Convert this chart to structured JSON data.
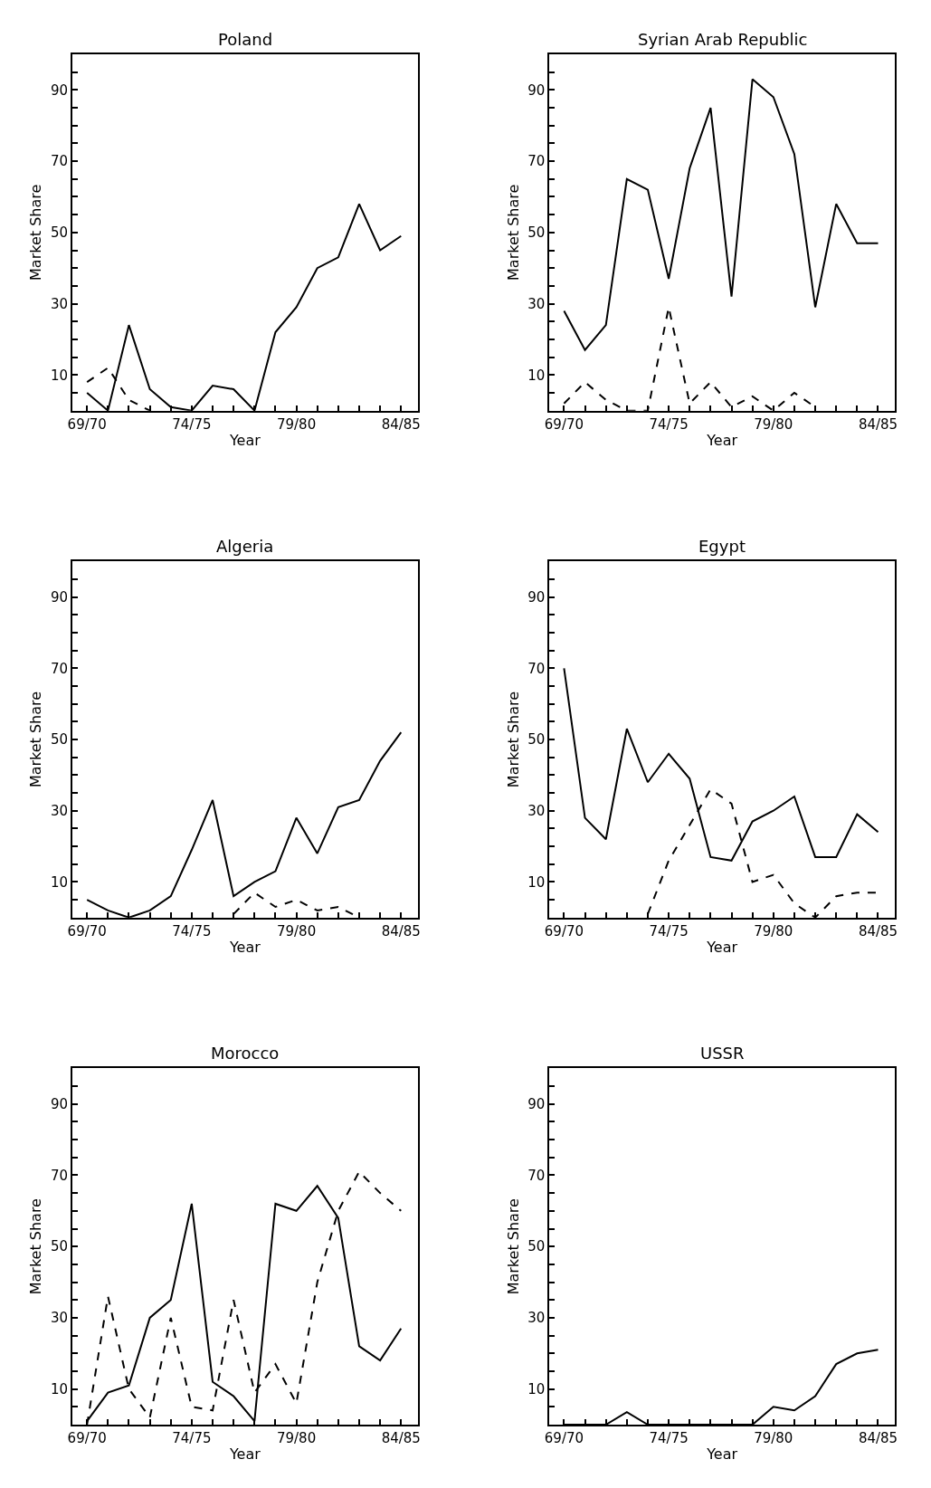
{
  "chart_data": [
    {
      "type": "line",
      "title": "Poland",
      "xlabel": "Year",
      "ylabel": "Market Share",
      "categories": [
        "69/70",
        null,
        null,
        null,
        null,
        "74/75",
        null,
        null,
        null,
        null,
        "79/80",
        null,
        null,
        null,
        null,
        "84/85"
      ],
      "series": [
        {
          "color": "#000000",
          "line_style": "solid",
          "values": [
            5,
            0,
            24,
            6,
            1,
            0,
            7,
            6,
            0,
            22,
            29,
            40,
            43,
            58,
            45,
            49
          ]
        },
        {
          "color": "#000000",
          "line_style": "dashed",
          "values": [
            8,
            12,
            3,
            0,
            null,
            null,
            null,
            null,
            null,
            null,
            null,
            null,
            null,
            null,
            null,
            null
          ]
        }
      ],
      "ylim": [
        0,
        100
      ],
      "yticks": [
        {
          "value": 5,
          "label": null
        },
        10,
        {
          "value": 15,
          "label": null
        },
        {
          "value": 20,
          "label": null
        },
        {
          "value": 25,
          "label": null
        },
        30,
        {
          "value": 35,
          "label": null
        },
        {
          "value": 40,
          "label": null
        },
        {
          "value": 45,
          "label": null
        },
        50,
        {
          "value": 55,
          "label": null
        },
        {
          "value": 60,
          "label": null
        },
        {
          "value": 65,
          "label": null
        },
        70,
        {
          "value": 75,
          "label": null
        },
        {
          "value": 80,
          "label": null
        },
        {
          "value": 85,
          "label": null
        },
        90,
        {
          "value": 95,
          "label": null
        }
      ],
      "grid": false
    },
    {
      "type": "line",
      "title": "Syrian Arab Republic",
      "xlabel": "Year",
      "ylabel": "Market Share",
      "categories": [
        "69/70",
        null,
        null,
        null,
        null,
        "74/75",
        null,
        null,
        null,
        null,
        "79/80",
        null,
        null,
        null,
        null,
        "84/85"
      ],
      "series": [
        {
          "color": "#000000",
          "line_style": "solid",
          "values": [
            28,
            17,
            24,
            65,
            62,
            37,
            68,
            85,
            32,
            93,
            88,
            72,
            29,
            58,
            47,
            47
          ]
        },
        {
          "color": "#000000",
          "line_style": "dashed",
          "values": [
            2,
            8,
            3,
            0,
            0,
            29,
            2,
            8,
            1,
            4,
            0,
            5,
            1,
            null,
            null,
            null
          ]
        }
      ],
      "ylim": [
        0,
        100
      ],
      "yticks": [
        {
          "value": 5,
          "label": null
        },
        10,
        {
          "value": 15,
          "label": null
        },
        {
          "value": 20,
          "label": null
        },
        {
          "value": 25,
          "label": null
        },
        30,
        {
          "value": 35,
          "label": null
        },
        {
          "value": 40,
          "label": null
        },
        {
          "value": 45,
          "label": null
        },
        50,
        {
          "value": 55,
          "label": null
        },
        {
          "value": 60,
          "label": null
        },
        {
          "value": 65,
          "label": null
        },
        70,
        {
          "value": 75,
          "label": null
        },
        {
          "value": 80,
          "label": null
        },
        {
          "value": 85,
          "label": null
        },
        90,
        {
          "value": 95,
          "label": null
        }
      ],
      "grid": false
    },
    {
      "type": "line",
      "title": "Algeria",
      "xlabel": "Year",
      "ylabel": "Market Share",
      "categories": [
        "69/70",
        null,
        null,
        null,
        null,
        "74/75",
        null,
        null,
        null,
        null,
        "79/80",
        null,
        null,
        null,
        null,
        "84/85"
      ],
      "series": [
        {
          "color": "#000000",
          "line_style": "solid",
          "values": [
            5,
            2,
            0,
            2,
            6,
            19,
            33,
            6,
            10,
            13,
            28,
            18,
            31,
            33,
            44,
            52
          ]
        },
        {
          "color": "#000000",
          "line_style": "dashed",
          "values": [
            null,
            null,
            null,
            null,
            null,
            null,
            null,
            1,
            7,
            3,
            5,
            2,
            3,
            0,
            null,
            null
          ]
        }
      ],
      "ylim": [
        0,
        100
      ],
      "yticks": [
        {
          "value": 5,
          "label": null
        },
        10,
        {
          "value": 15,
          "label": null
        },
        {
          "value": 20,
          "label": null
        },
        {
          "value": 25,
          "label": null
        },
        30,
        {
          "value": 35,
          "label": null
        },
        {
          "value": 40,
          "label": null
        },
        {
          "value": 45,
          "label": null
        },
        50,
        {
          "value": 55,
          "label": null
        },
        {
          "value": 60,
          "label": null
        },
        {
          "value": 65,
          "label": null
        },
        70,
        {
          "value": 75,
          "label": null
        },
        {
          "value": 80,
          "label": null
        },
        {
          "value": 85,
          "label": null
        },
        90,
        {
          "value": 95,
          "label": null
        }
      ],
      "grid": false
    },
    {
      "type": "line",
      "title": "Egypt",
      "xlabel": "Year",
      "ylabel": "Market Share",
      "categories": [
        "69/70",
        null,
        null,
        null,
        null,
        "74/75",
        null,
        null,
        null,
        null,
        "79/80",
        null,
        null,
        null,
        null,
        "84/85"
      ],
      "series": [
        {
          "color": "#000000",
          "line_style": "solid",
          "values": [
            70,
            28,
            22,
            53,
            38,
            46,
            39,
            17,
            16,
            27,
            30,
            34,
            17,
            17,
            29,
            24
          ]
        },
        {
          "color": "#000000",
          "line_style": "dashed",
          "values": [
            null,
            null,
            null,
            null,
            1,
            16,
            26,
            36,
            32,
            10,
            12,
            4,
            0,
            6,
            7,
            7
          ]
        }
      ],
      "ylim": [
        0,
        100
      ],
      "yticks": [
        {
          "value": 5,
          "label": null
        },
        10,
        {
          "value": 15,
          "label": null
        },
        {
          "value": 20,
          "label": null
        },
        {
          "value": 25,
          "label": null
        },
        30,
        {
          "value": 35,
          "label": null
        },
        {
          "value": 40,
          "label": null
        },
        {
          "value": 45,
          "label": null
        },
        50,
        {
          "value": 55,
          "label": null
        },
        {
          "value": 60,
          "label": null
        },
        {
          "value": 65,
          "label": null
        },
        70,
        {
          "value": 75,
          "label": null
        },
        {
          "value": 80,
          "label": null
        },
        {
          "value": 85,
          "label": null
        },
        90,
        {
          "value": 95,
          "label": null
        }
      ],
      "grid": false
    },
    {
      "type": "line",
      "title": "Morocco",
      "xlabel": "Year",
      "ylabel": "Market Share",
      "categories": [
        "69/70",
        null,
        null,
        null,
        null,
        "74/75",
        null,
        null,
        null,
        null,
        "79/80",
        null,
        null,
        null,
        null,
        "84/85"
      ],
      "series": [
        {
          "color": "#000000",
          "line_style": "solid",
          "values": [
            1,
            9,
            11,
            30,
            35,
            62,
            12,
            8,
            1,
            62,
            60,
            67,
            58,
            22,
            18,
            27
          ]
        },
        {
          "color": "#000000",
          "line_style": "dashed",
          "values": [
            0,
            36,
            10,
            2,
            30,
            5,
            4,
            35,
            9,
            17,
            6,
            40,
            60,
            71,
            65,
            60
          ]
        }
      ],
      "ylim": [
        0,
        100
      ],
      "yticks": [
        {
          "value": 5,
          "label": null
        },
        10,
        {
          "value": 15,
          "label": null
        },
        {
          "value": 20,
          "label": null
        },
        {
          "value": 25,
          "label": null
        },
        30,
        {
          "value": 35,
          "label": null
        },
        {
          "value": 40,
          "label": null
        },
        {
          "value": 45,
          "label": null
        },
        50,
        {
          "value": 55,
          "label": null
        },
        {
          "value": 60,
          "label": null
        },
        {
          "value": 65,
          "label": null
        },
        70,
        {
          "value": 75,
          "label": null
        },
        {
          "value": 80,
          "label": null
        },
        {
          "value": 85,
          "label": null
        },
        90,
        {
          "value": 95,
          "label": null
        }
      ],
      "grid": false
    },
    {
      "type": "line",
      "title": "USSR",
      "xlabel": "Year",
      "ylabel": "Market Share",
      "categories": [
        "69/70",
        null,
        null,
        null,
        null,
        "74/75",
        null,
        null,
        null,
        null,
        "79/80",
        null,
        null,
        null,
        null,
        "84/85"
      ],
      "series": [
        {
          "color": "#000000",
          "line_style": "solid",
          "values": [
            0,
            0,
            0,
            3.5,
            0,
            0,
            0,
            0,
            0,
            0,
            5,
            4,
            8,
            17,
            20,
            21
          ]
        }
      ],
      "ylim": [
        0,
        100
      ],
      "yticks": [
        {
          "value": 5,
          "label": null
        },
        10,
        {
          "value": 15,
          "label": null
        },
        {
          "value": 20,
          "label": null
        },
        {
          "value": 25,
          "label": null
        },
        30,
        {
          "value": 35,
          "label": null
        },
        {
          "value": 40,
          "label": null
        },
        {
          "value": 45,
          "label": null
        },
        50,
        {
          "value": 55,
          "label": null
        },
        {
          "value": 60,
          "label": null
        },
        {
          "value": 65,
          "label": null
        },
        70,
        {
          "value": 75,
          "label": null
        },
        {
          "value": 80,
          "label": null
        },
        {
          "value": 85,
          "label": null
        },
        90,
        {
          "value": 95,
          "label": null
        }
      ],
      "grid": false
    }
  ]
}
